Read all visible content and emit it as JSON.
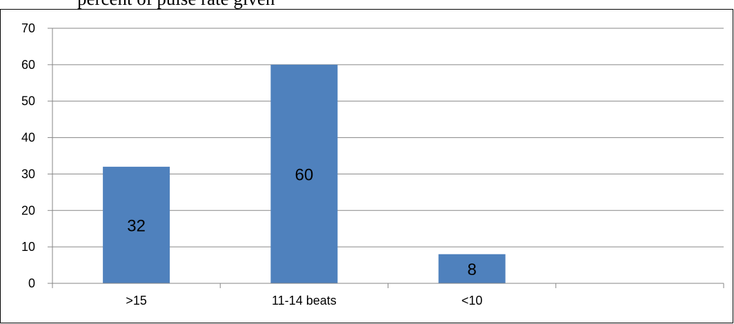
{
  "caption_fragment": "percent of pulse rate given",
  "chart_data": {
    "type": "bar",
    "categories": [
      ">15",
      "11-14 beats",
      "<10",
      ""
    ],
    "values": [
      32,
      60,
      8,
      null
    ],
    "data_labels": [
      "32",
      "60",
      "8",
      ""
    ],
    "title": "",
    "xlabel": "",
    "ylabel": "",
    "ylim": [
      0,
      70
    ],
    "yticks": [
      0,
      10,
      20,
      30,
      40,
      50,
      60,
      70
    ],
    "grid": true,
    "legend": "none",
    "bar_color": "#4f81bd",
    "gridline_color": "#868686"
  }
}
